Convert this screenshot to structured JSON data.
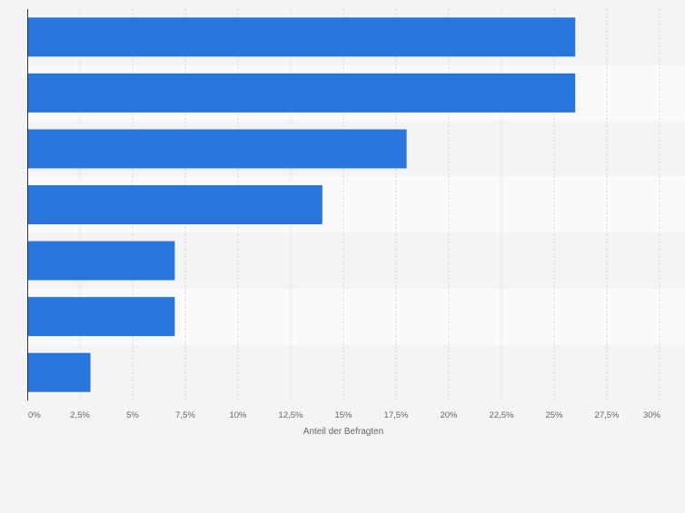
{
  "chart_data": {
    "type": "bar",
    "orientation": "horizontal",
    "categories": [
      "",
      "",
      "",
      "",
      "",
      "",
      ""
    ],
    "values": [
      26,
      26,
      18,
      14,
      7,
      7,
      3
    ],
    "xlabel": "Anteil der Befragten",
    "ylabel": "",
    "xlim": [
      0,
      30
    ],
    "xticks": [
      0,
      2.5,
      5,
      7.5,
      10,
      12.5,
      15,
      17.5,
      20,
      22.5,
      25,
      27.5,
      30
    ],
    "xtick_labels": [
      "0%",
      "2,5%",
      "5%",
      "7,5%",
      "10%",
      "12,5%",
      "15%",
      "17,5%",
      "20%",
      "22,5%",
      "25%",
      "27,5%",
      "30%"
    ],
    "grid": true,
    "legend": "none",
    "colors": {
      "bar": "#2876dd",
      "background": "#f4f4f4",
      "band_alt": "#fafafa",
      "gridline": "#d9d9d9",
      "axis": "#333333",
      "tick_text": "#666666"
    }
  }
}
